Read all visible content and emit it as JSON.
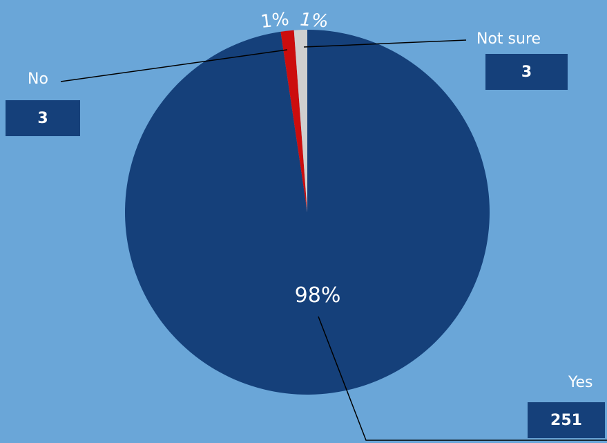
{
  "chart_data": {
    "type": "pie",
    "title": "",
    "slices": [
      {
        "label": "Yes",
        "count": "251",
        "value": 251,
        "percent_label": "98%",
        "color": "#15407a"
      },
      {
        "label": "No",
        "count": "3",
        "value": 3,
        "percent_label": "1%",
        "color": "#cc0d0d"
      },
      {
        "label": "Not sure",
        "count": "3",
        "value": 3,
        "percent_label": "1%",
        "color": "#cfcfcf"
      }
    ],
    "legend": "none",
    "background_color": "#6aa6d8"
  }
}
